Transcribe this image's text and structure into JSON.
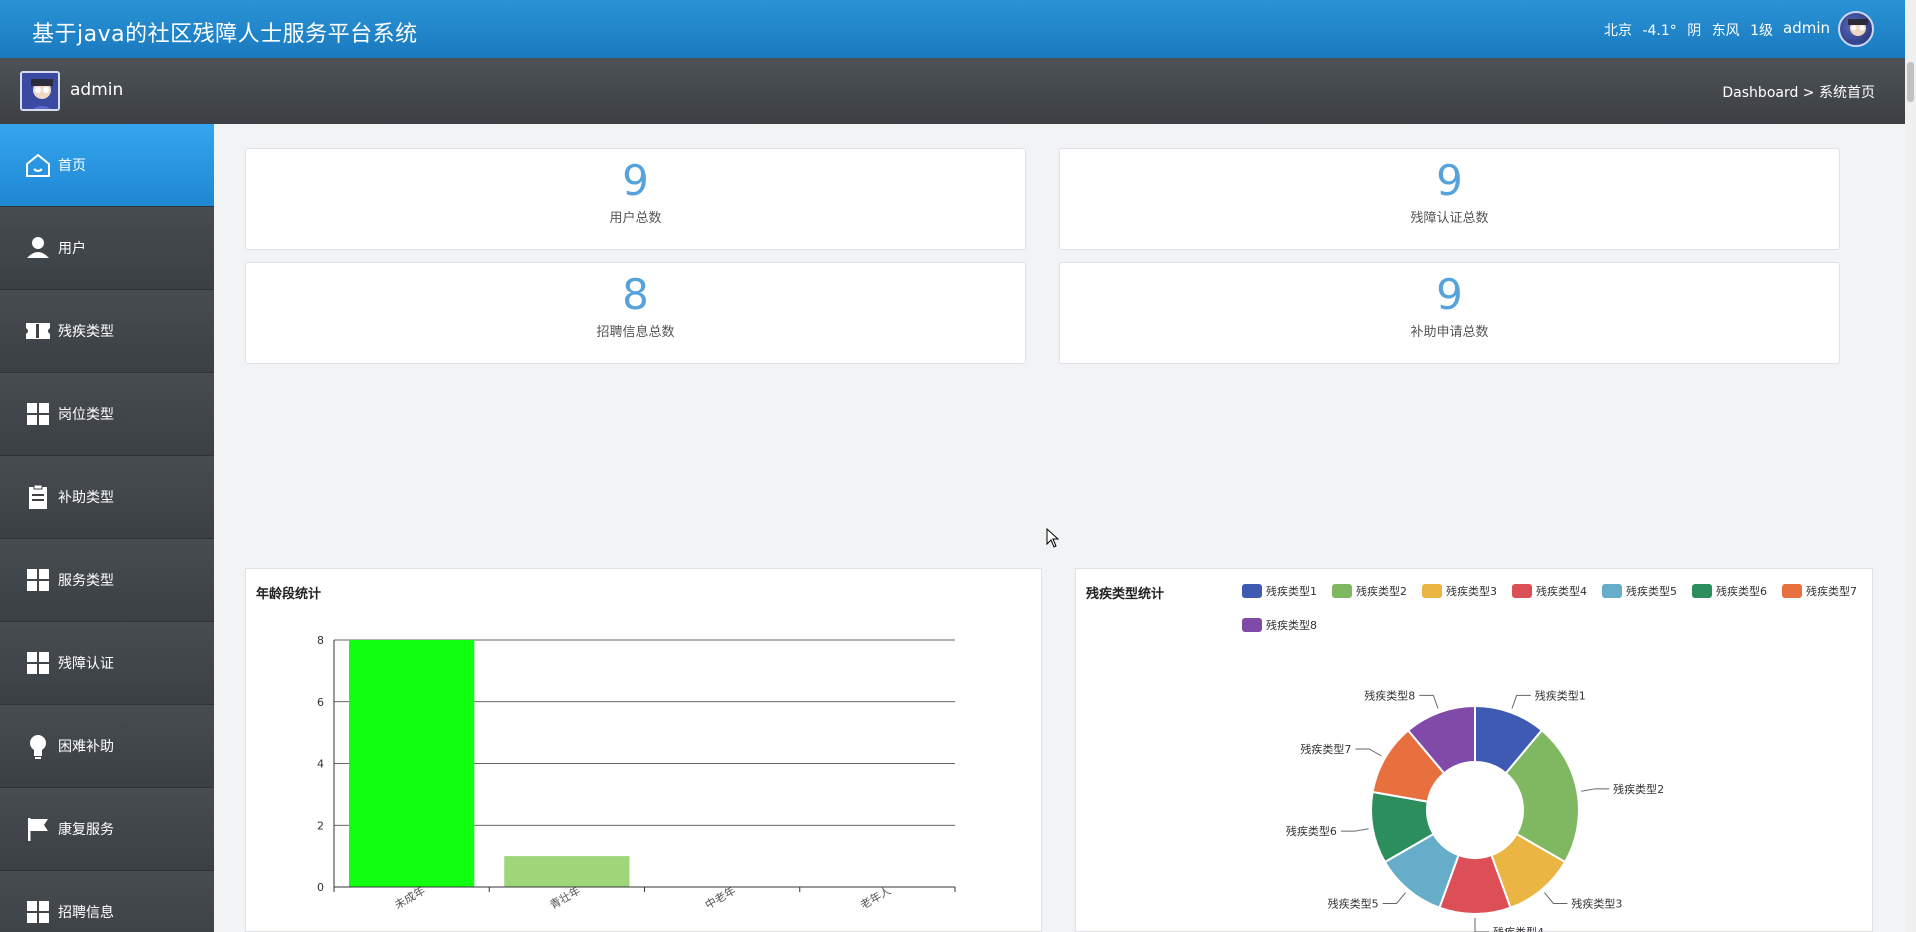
{
  "header": {
    "title": "基于java的社区残障人士服务平台系统",
    "weather": {
      "city": "北京",
      "temp": "-4.1°",
      "condition": "阴",
      "wind": "东风",
      "level": "1级"
    },
    "user": "admin"
  },
  "subbar": {
    "username": "admin",
    "breadcrumb": "Dashboard > 系统首页"
  },
  "sidebar": {
    "items": [
      {
        "label": "首页",
        "icon": "home-icon",
        "active": true
      },
      {
        "label": "用户",
        "icon": "user-icon"
      },
      {
        "label": "残疾类型",
        "icon": "ticket-icon"
      },
      {
        "label": "岗位类型",
        "icon": "grid-icon"
      },
      {
        "label": "补助类型",
        "icon": "clipboard-icon"
      },
      {
        "label": "服务类型",
        "icon": "grid-icon"
      },
      {
        "label": "残障认证",
        "icon": "grid-icon"
      },
      {
        "label": "困难补助",
        "icon": "bulb-icon"
      },
      {
        "label": "康复服务",
        "icon": "flag-icon"
      },
      {
        "label": "招聘信息",
        "icon": "grid-icon"
      }
    ]
  },
  "stats": [
    {
      "value": "9",
      "label": "用户总数"
    },
    {
      "value": "9",
      "label": "残障认证总数"
    },
    {
      "value": "8",
      "label": "招聘信息总数"
    },
    {
      "value": "9",
      "label": "补助申请总数"
    }
  ],
  "chart_data": [
    {
      "type": "bar",
      "title": "年龄段统计",
      "categories": [
        "未成年",
        "青壮年",
        "中老年",
        "老年人"
      ],
      "values": [
        8,
        1,
        0,
        0
      ],
      "ylim": [
        0,
        8
      ],
      "yticks": [
        "0",
        "2",
        "4",
        "6",
        "8"
      ],
      "colors": [
        "#11ff11",
        "#9fd67a"
      ],
      "grid": true
    },
    {
      "type": "pie",
      "title": "残疾类型统计",
      "labels": [
        "残疾类型1",
        "残疾类型2",
        "残疾类型3",
        "残疾类型4",
        "残疾类型5",
        "残疾类型6",
        "残疾类型7",
        "残疾类型8"
      ],
      "values": [
        1,
        2,
        1,
        1,
        1,
        1,
        1,
        1
      ],
      "colors": [
        "#3f5ab3",
        "#80b862",
        "#ebb544",
        "#dc4f57",
        "#65adc8",
        "#2d8e5d",
        "#e8703f",
        "#7f4aa8"
      ],
      "legend": "top-right"
    }
  ]
}
